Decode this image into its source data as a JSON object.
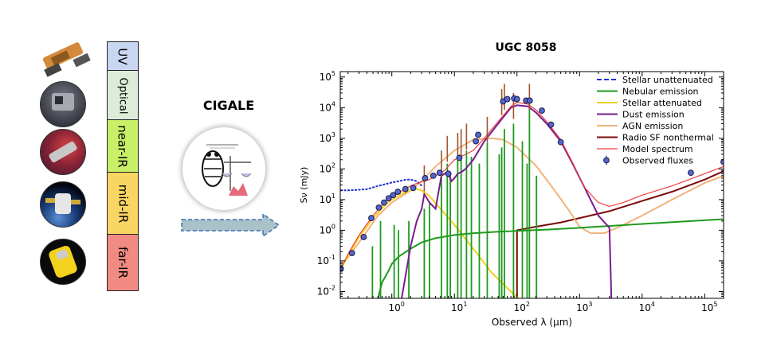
{
  "left_panel": {
    "telescopes": [
      "telescope-1-icon",
      "telescope-2-icon",
      "telescope-3-icon",
      "telescope-4-icon",
      "telescope-5-icon"
    ],
    "bands": [
      {
        "label": "UV",
        "color": "#c9d6f2"
      },
      {
        "label": "Optical",
        "color": "#dcecd9"
      },
      {
        "label": "near-IR",
        "color": "#c9ef67"
      },
      {
        "label": "mid-IR",
        "color": "#f9d563"
      },
      {
        "label": "far-IR",
        "color": "#f08a82"
      }
    ]
  },
  "middle": {
    "title": "CIGALE",
    "logo_icon": "cigale-logo-icon",
    "arrow_icon": "arrow-right-icon"
  },
  "chart_data": {
    "type": "line",
    "title": "UGC 8058",
    "xlabel": "Observed λ (μm)",
    "ylabel": "Sν (mJy)",
    "xscale": "log",
    "yscale": "log",
    "xlim": [
      0.15,
      200000
    ],
    "ylim": [
      0.006,
      150000
    ],
    "xticks": [
      {
        "value": 1,
        "label": "10^0"
      },
      {
        "value": 10,
        "label": "10^1"
      },
      {
        "value": 100,
        "label": "10^2"
      },
      {
        "value": 1000,
        "label": "10^3"
      },
      {
        "value": 10000,
        "label": "10^4"
      },
      {
        "value": 100000,
        "label": "10^5"
      }
    ],
    "yticks": [
      {
        "value": 0.01,
        "label": "10^-2"
      },
      {
        "value": 0.1,
        "label": "10^-1"
      },
      {
        "value": 1,
        "label": "10^0"
      },
      {
        "value": 10,
        "label": "10^1"
      },
      {
        "value": 100,
        "label": "10^2"
      },
      {
        "value": 1000,
        "label": "10^3"
      },
      {
        "value": 10000,
        "label": "10^4"
      },
      {
        "value": 100000,
        "label": "10^5"
      }
    ],
    "legend_position": "top-right",
    "series": [
      {
        "name": "Stellar unattenuated",
        "color": "#1f2fd6",
        "style": "dashed",
        "x": [
          0.15,
          0.2,
          0.3,
          0.4,
          0.5,
          0.6,
          0.8,
          1.0,
          1.3,
          1.6,
          2.0,
          2.5,
          3.0
        ],
        "y": [
          20,
          20,
          21,
          22,
          25,
          28,
          32,
          36,
          40,
          44,
          45,
          40,
          28
        ]
      },
      {
        "name": "Nebular emission",
        "color": "#1e9a1e",
        "style": "solid",
        "x": [
          0.6,
          0.7,
          0.9,
          1.0,
          1.3,
          2.0,
          3.0,
          5.0,
          10,
          20,
          50,
          100,
          300,
          1000,
          10000,
          200000
        ],
        "y": [
          0.006,
          0.02,
          0.05,
          0.08,
          0.14,
          0.25,
          0.4,
          0.55,
          0.7,
          0.8,
          0.9,
          0.95,
          1.05,
          1.2,
          1.6,
          2.3
        ],
        "lines": [
          {
            "x": 0.49,
            "y": 0.3
          },
          {
            "x": 0.66,
            "y": 2.0
          },
          {
            "x": 1.09,
            "y": 1.5
          },
          {
            "x": 1.28,
            "y": 1.0
          },
          {
            "x": 1.87,
            "y": 2.0
          },
          {
            "x": 3.3,
            "y": 5.0
          },
          {
            "x": 4.0,
            "y": 8.0
          },
          {
            "x": 6.2,
            "y": 60
          },
          {
            "x": 7.7,
            "y": 150
          },
          {
            "x": 8.6,
            "y": 80
          },
          {
            "x": 11.3,
            "y": 200
          },
          {
            "x": 12.8,
            "y": 300
          },
          {
            "x": 15.6,
            "y": 400
          },
          {
            "x": 18.7,
            "y": 250
          },
          {
            "x": 25,
            "y": 150
          },
          {
            "x": 33.5,
            "y": 700
          },
          {
            "x": 52,
            "y": 300
          },
          {
            "x": 57,
            "y": 500
          },
          {
            "x": 63,
            "y": 2000
          },
          {
            "x": 88,
            "y": 3000
          },
          {
            "x": 122,
            "y": 800
          },
          {
            "x": 145,
            "y": 150
          },
          {
            "x": 158,
            "y": 15000
          },
          {
            "x": 205,
            "y": 60
          }
        ]
      },
      {
        "name": "Stellar attenuated",
        "color": "#f2cf1c",
        "style": "solid",
        "x": [
          0.15,
          0.2,
          0.3,
          0.5,
          0.8,
          1.0,
          1.5,
          2.0,
          2.5,
          3.0,
          4.0,
          6.0,
          10,
          20,
          40,
          80,
          150
        ],
        "y": [
          0.05,
          0.15,
          0.6,
          2.5,
          7,
          10,
          16,
          20,
          22,
          20,
          13,
          5,
          1.5,
          0.25,
          0.04,
          0.01,
          0.003
        ]
      },
      {
        "name": "Dust emission",
        "color": "#7a1c8e",
        "style": "solid",
        "x": [
          1,
          1.5,
          2,
          2.5,
          3,
          3.3,
          4,
          5,
          6.2,
          7.7,
          9,
          10,
          11.3,
          13,
          15,
          20,
          30,
          50,
          80,
          100,
          150,
          200,
          300,
          500,
          800,
          1200,
          2000,
          3000,
          3200,
          3300
        ],
        "y": [
          0.0001,
          0.01,
          0.3,
          2,
          5,
          15,
          8,
          5,
          60,
          80,
          40,
          50,
          70,
          80,
          100,
          200,
          800,
          3000,
          10000,
          12000,
          11000,
          7000,
          3000,
          800,
          130,
          25,
          3,
          1.2,
          0.01,
          0.0001
        ]
      },
      {
        "name": "AGN emission",
        "color": "#f2b27a",
        "style": "solid",
        "x": [
          0.15,
          0.3,
          0.6,
          1.0,
          2.0,
          3.0,
          5.0,
          10,
          20,
          40,
          60,
          100,
          200,
          400,
          700,
          1000,
          1500,
          2500,
          4000,
          10000,
          30000,
          100000,
          200000
        ],
        "y": [
          0.06,
          0.4,
          3,
          8,
          20,
          40,
          120,
          400,
          900,
          1000,
          900,
          500,
          130,
          20,
          4,
          1.3,
          0.8,
          0.8,
          1.2,
          3,
          10,
          35,
          60
        ]
      },
      {
        "name": "Radio SF nonthermal",
        "color": "#7a0a0a",
        "style": "solid",
        "x": [
          100,
          100,
          200,
          500,
          1000,
          3000,
          10000,
          30000,
          100000,
          200000
        ],
        "y": [
          0.001,
          1.0,
          1.3,
          1.8,
          2.5,
          4.2,
          9,
          18,
          45,
          85
        ]
      },
      {
        "name": "Model spectrum",
        "color": "#f04040",
        "style": "solid",
        "x": [
          0.15,
          0.2,
          0.3,
          0.5,
          0.8,
          1.0,
          1.5,
          2.0,
          2.5,
          3.0,
          4.0,
          5.0,
          7.0,
          10,
          15,
          20,
          30,
          50,
          80,
          100,
          150,
          200,
          300,
          500,
          800,
          1200,
          2000,
          3000,
          5000,
          10000,
          30000,
          100000,
          200000
        ],
        "y": [
          0.05,
          0.17,
          0.7,
          3,
          9,
          12,
          20,
          28,
          34,
          38,
          45,
          60,
          90,
          200,
          300,
          400,
          1000,
          3500,
          11000,
          15000,
          13000,
          8500,
          3500,
          900,
          140,
          25,
          8,
          6,
          8,
          14,
          28,
          70,
          120
        ],
        "spikes": [
          {
            "x": 3.3,
            "y": 130
          },
          {
            "x": 6.2,
            "y": 400
          },
          {
            "x": 7.7,
            "y": 1200
          },
          {
            "x": 11.3,
            "y": 1500
          },
          {
            "x": 12.8,
            "y": 2000
          },
          {
            "x": 15.6,
            "y": 3000
          },
          {
            "x": 33.5,
            "y": 5000
          },
          {
            "x": 57,
            "y": 40000
          },
          {
            "x": 63,
            "y": 60000
          },
          {
            "x": 88,
            "y": 30000
          },
          {
            "x": 158,
            "y": 60000
          }
        ]
      },
      {
        "name": "Observed fluxes",
        "color": "#5566cc",
        "style": "marker",
        "x": [
          0.153,
          0.231,
          0.355,
          0.47,
          0.62,
          0.75,
          0.89,
          1.05,
          1.25,
          1.65,
          2.2,
          3.4,
          4.6,
          5.8,
          8.0,
          12,
          22,
          24,
          60,
          70,
          90,
          100,
          140,
          160,
          250,
          350,
          500,
          60000,
          200000
        ],
        "y": [
          0.055,
          0.18,
          0.6,
          2.5,
          5.5,
          8,
          11,
          14,
          18,
          22,
          24,
          50,
          60,
          75,
          70,
          230,
          800,
          1300,
          16000,
          19000,
          20000,
          19000,
          17000,
          17000,
          8000,
          2800,
          750,
          75,
          170
        ]
      }
    ]
  }
}
